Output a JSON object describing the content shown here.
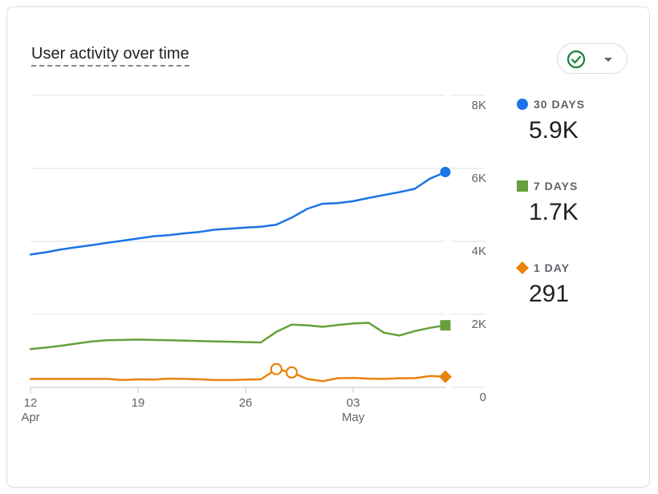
{
  "card": {
    "title": "User activity over time"
  },
  "controls": {
    "status_icon": "check-circle-icon",
    "dropdown_icon": "caret-down-icon"
  },
  "colors": {
    "thirty_days": "#1a73e8",
    "seven_days": "#66a03c",
    "one_day": "#e8830c",
    "grid": "#e0e0e0",
    "axis_text": "#5f6368"
  },
  "chart_data": {
    "type": "line",
    "title": "User activity over time",
    "x_ticks": [
      {
        "day": "12",
        "month": "Apr",
        "index": 0
      },
      {
        "day": "19",
        "month": "",
        "index": 7
      },
      {
        "day": "26",
        "month": "",
        "index": 14
      },
      {
        "day": "03",
        "month": "May",
        "index": 21
      }
    ],
    "y_ticks": [
      "0",
      "2K",
      "4K",
      "6K",
      "8K"
    ],
    "y_tick_values": [
      0,
      2000,
      4000,
      6000,
      8000
    ],
    "ylim": [
      0,
      8000
    ],
    "x_count": 28,
    "grid": true,
    "legend_position": "right",
    "series": [
      {
        "key": "thirty_days",
        "name": "30 DAYS",
        "summary": "5.9K",
        "marker": "circle",
        "values": [
          3640,
          3700,
          3780,
          3840,
          3900,
          3960,
          4020,
          4080,
          4140,
          4170,
          4220,
          4260,
          4320,
          4350,
          4380,
          4400,
          4460,
          4650,
          4890,
          5030,
          5050,
          5100,
          5190,
          5270,
          5350,
          5440,
          5720,
          5900
        ]
      },
      {
        "key": "seven_days",
        "name": "7 DAYS",
        "summary": "1.7K",
        "marker": "square",
        "values": [
          1050,
          1090,
          1140,
          1200,
          1260,
          1290,
          1300,
          1310,
          1300,
          1290,
          1280,
          1270,
          1260,
          1250,
          1240,
          1230,
          1520,
          1720,
          1700,
          1660,
          1710,
          1750,
          1770,
          1500,
          1420,
          1540,
          1630,
          1700
        ]
      },
      {
        "key": "one_day",
        "name": "1 DAY",
        "summary": "291",
        "marker": "diamond",
        "values": [
          230,
          230,
          230,
          230,
          230,
          230,
          200,
          220,
          210,
          240,
          230,
          220,
          200,
          200,
          210,
          220,
          500,
          410,
          230,
          170,
          250,
          260,
          240,
          230,
          250,
          250,
          310,
          291
        ],
        "anomalies": [
          16,
          17
        ]
      }
    ]
  }
}
